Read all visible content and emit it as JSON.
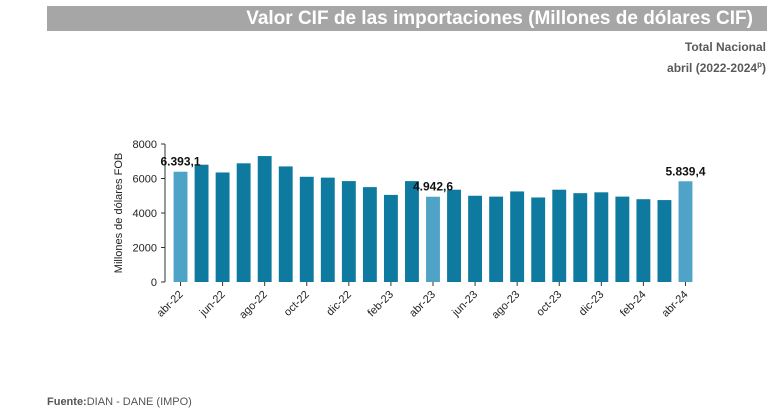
{
  "header": {
    "title": "Valor CIF de las importaciones (Millones de dólares CIF)",
    "subtitle_line1": "Total Nacional",
    "subtitle_line2_main": "abril (2022-2024",
    "subtitle_line2_sup": "p",
    "subtitle_line2_close": ")"
  },
  "footer": {
    "source_label": "Fuente:",
    "source_text": "DIAN - DANE (IMPO)"
  },
  "colors": {
    "bar": "#0f7aa0",
    "bar_highlight": "#4fa3c7",
    "title_bg": "#a6a6a6",
    "axis": "#333333"
  },
  "chart_data": {
    "type": "bar",
    "title": "Valor CIF de las importaciones (Millones de dólares CIF)",
    "ylabel": "Millones de dólares FOB",
    "xlabel": "",
    "ylim": [
      0,
      8000
    ],
    "yticks": [
      0,
      2000,
      4000,
      6000,
      8000
    ],
    "yticks_labels": [
      "0",
      "2000",
      "4000",
      "6000",
      "8000"
    ],
    "grid": false,
    "categories": [
      "abr-22",
      "may-22",
      "jun-22",
      "jul-22",
      "ago-22",
      "sep-22",
      "oct-22",
      "nov-22",
      "dic-22",
      "ene-23",
      "feb-23",
      "mar-23",
      "abr-23",
      "may-23",
      "jun-23",
      "jul-23",
      "ago-23",
      "sep-23",
      "oct-23",
      "nov-23",
      "dic-23",
      "ene-24",
      "feb-24",
      "mar-24",
      "abr-24"
    ],
    "values": [
      6393.1,
      6800,
      6350,
      6880,
      7300,
      6700,
      6100,
      6050,
      5850,
      5500,
      5050,
      5850,
      4942.6,
      5350,
      5000,
      4950,
      5250,
      4900,
      5350,
      5150,
      5200,
      4950,
      4800,
      4750,
      5839.4
    ],
    "highlight_indices": [
      0,
      12,
      24
    ],
    "tick_labels_shown": [
      "abr-22",
      "jun-22",
      "ago-22",
      "oct-22",
      "dic-22",
      "feb-23",
      "abr-23",
      "jun-23",
      "ago-23",
      "oct-23",
      "dic-23",
      "feb-24",
      "abr-24"
    ],
    "data_labels": [
      {
        "index": 0,
        "text": "6.393,1"
      },
      {
        "index": 12,
        "text": "4.942,6"
      },
      {
        "index": 24,
        "text": "5.839,4"
      }
    ]
  }
}
